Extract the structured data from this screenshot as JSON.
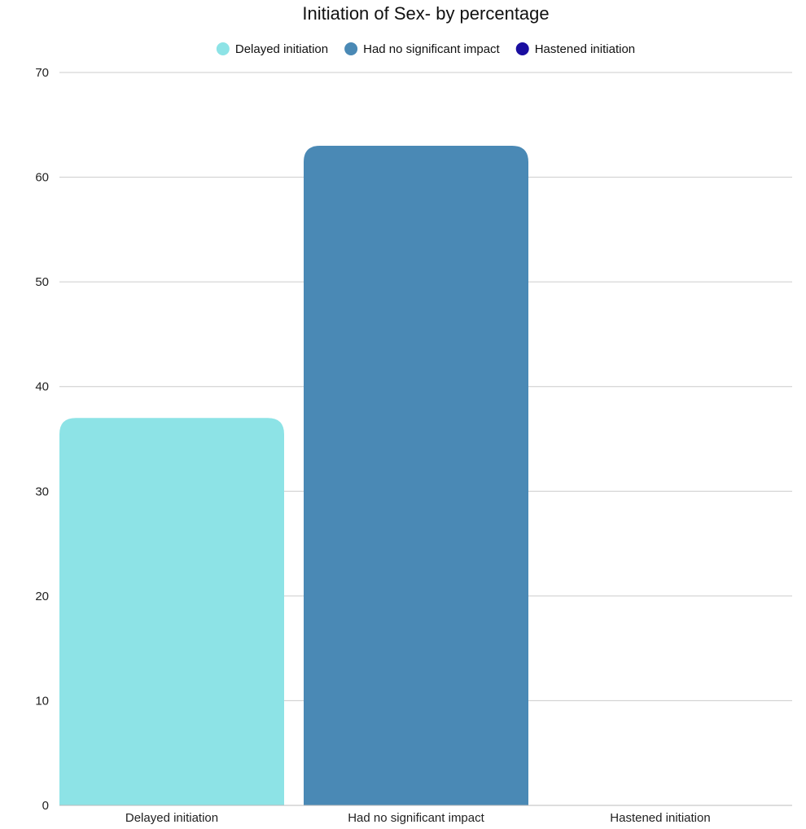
{
  "chart_data": {
    "type": "bar",
    "title": "Initiation of Sex- by percentage",
    "xlabel": "",
    "ylabel": "",
    "categories": [
      "Delayed initiation",
      "Had no significant impact",
      "Hastened initiation"
    ],
    "values": [
      37,
      63,
      0
    ],
    "colors": [
      "#8de3e6",
      "#4a89b5",
      "#1a0ea0"
    ],
    "legend": {
      "position": "top",
      "entries": [
        "Delayed initiation",
        "Had no significant impact",
        "Hastened initiation"
      ]
    },
    "ylim": [
      0,
      70
    ],
    "yticks": [
      0,
      10,
      20,
      30,
      40,
      50,
      60,
      70
    ],
    "grid": true
  }
}
